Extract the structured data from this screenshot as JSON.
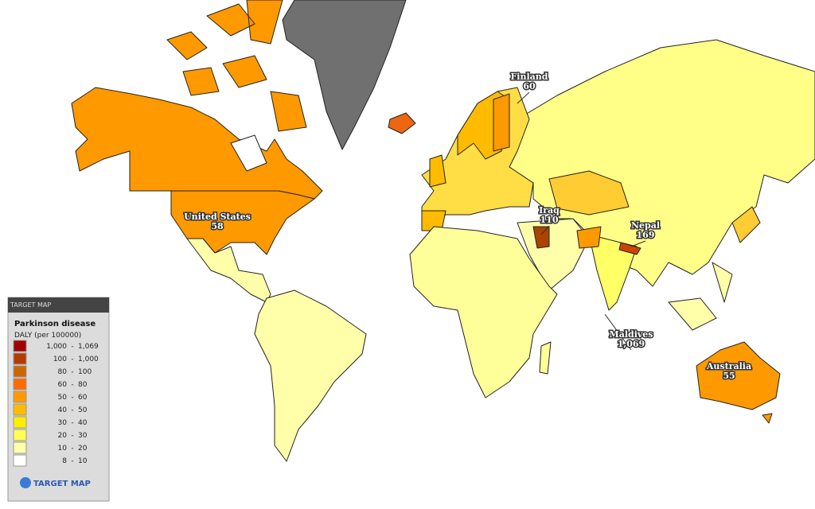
{
  "legend": {
    "brand": "TARGET MAP",
    "title": "Parkinson disease",
    "unit": "DALY (per 100000)",
    "separator": "-",
    "ranges": [
      {
        "from": "1,000",
        "to": "1,069",
        "color": "#a00000"
      },
      {
        "from": "100",
        "to": "1,000",
        "color": "#b33c00"
      },
      {
        "from": "80",
        "to": "100",
        "color": "#cc6600"
      },
      {
        "from": "60",
        "to": "80",
        "color": "#ff6a00"
      },
      {
        "from": "50",
        "to": "60",
        "color": "#ff9900"
      },
      {
        "from": "40",
        "to": "50",
        "color": "#ffbb00"
      },
      {
        "from": "30",
        "to": "40",
        "color": "#ffee00"
      },
      {
        "from": "20",
        "to": "30",
        "color": "#ffff55"
      },
      {
        "from": "10",
        "to": "20",
        "color": "#ffffaa"
      },
      {
        "from": "8",
        "to": "10",
        "color": "#ffffff"
      }
    ],
    "logo": "TARGET MAP"
  },
  "callouts": [
    {
      "country": "Finland",
      "value": "60"
    },
    {
      "country": "United States",
      "value": "58"
    },
    {
      "country": "Iraq",
      "value": "110"
    },
    {
      "country": "Nepal",
      "value": "169"
    },
    {
      "country": "Maldives",
      "value": "1,069"
    },
    {
      "country": "Australia",
      "value": "55"
    }
  ]
}
